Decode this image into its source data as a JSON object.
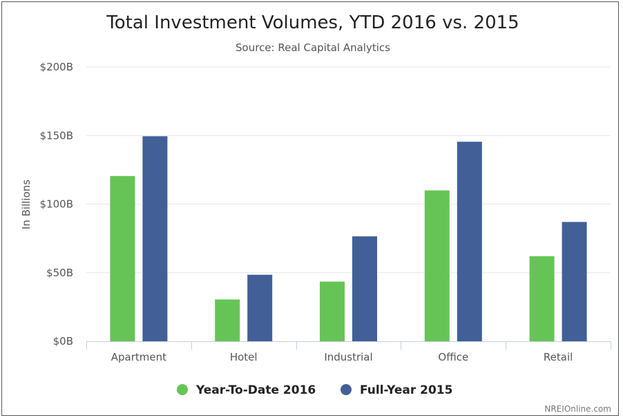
{
  "chart_data": {
    "type": "bar",
    "title": "Total Investment Volumes, YTD 2016 vs. 2015",
    "subtitle": "Source: Real Capital Analytics",
    "ylabel": "In Billions",
    "xlabel": "",
    "ylim": [
      0,
      200
    ],
    "yticks": [
      0,
      50,
      100,
      150,
      200
    ],
    "ytick_labels": [
      "$0B",
      "$50B",
      "$100B",
      "$150B",
      "$200B"
    ],
    "categories": [
      "Apartment",
      "Hotel",
      "Industrial",
      "Office",
      "Retail"
    ],
    "series": [
      {
        "name": "Year-To-Date 2016",
        "color": "#66c456",
        "values": [
          120.5,
          30.5,
          43.5,
          110,
          62
        ]
      },
      {
        "name": "Full-Year 2015",
        "color": "#425f98",
        "values": [
          149.5,
          48.5,
          76.5,
          145.5,
          87
        ]
      }
    ],
    "grid": true,
    "legend_position": "bottom-center",
    "credit": "NREIOnline.com"
  }
}
